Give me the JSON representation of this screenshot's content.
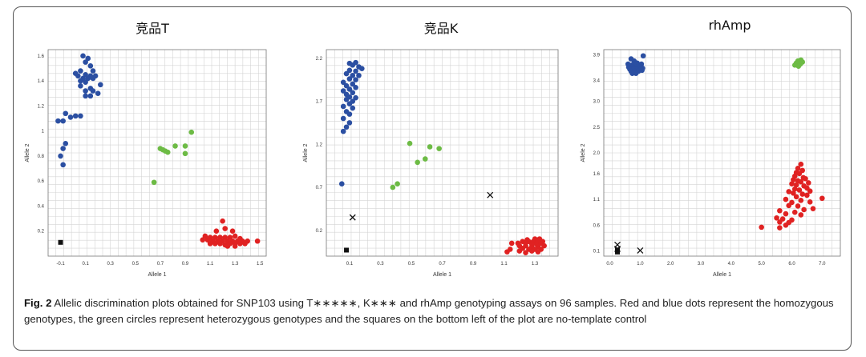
{
  "caption": {
    "label": "Fig. 2",
    "text": "Allelic discrimination plots obtained for SNP103 using T∗∗∗∗∗, K∗∗∗ and rhAmp genotyping assays on 96 samples. Red and blue dots represent the homozygous genotypes, the green circles represent heterozygous genotypes and the squares on the bottom left of the plot are no-template control"
  },
  "colors": {
    "blue": "#2b4fa2",
    "green": "#6dbb45",
    "red": "#e02222",
    "black": "#111111"
  },
  "chart_data": [
    {
      "type": "scatter",
      "title": "竞品T",
      "xlabel": "Allele 1",
      "ylabel": "Allele 2",
      "xlim": [
        -0.2,
        1.55
      ],
      "ylim": [
        0,
        1.65
      ],
      "xticks": [
        "-0.1",
        "0.1",
        "0.3",
        "0.5",
        "0.7",
        "0.9",
        "1.1",
        "1.3",
        "1.5"
      ],
      "yticks": [
        "0.2",
        "0.4",
        "0.6",
        "0.8",
        "1",
        "1.2",
        "1.4",
        "1.6"
      ],
      "series": [
        {
          "color": "blue",
          "marker": "circle",
          "points": [
            [
              0.08,
              1.6
            ],
            [
              0.12,
              1.58
            ],
            [
              0.1,
              1.55
            ],
            [
              0.14,
              1.52
            ],
            [
              0.06,
              1.48
            ],
            [
              0.16,
              1.48
            ],
            [
              0.02,
              1.46
            ],
            [
              0.1,
              1.45
            ],
            [
              0.04,
              1.44
            ],
            [
              0.14,
              1.44
            ],
            [
              0.18,
              1.44
            ],
            [
              0.08,
              1.42
            ],
            [
              0.12,
              1.42
            ],
            [
              0.16,
              1.42
            ],
            [
              0.06,
              1.4
            ],
            [
              0.1,
              1.39
            ],
            [
              0.22,
              1.37
            ],
            [
              0.06,
              1.36
            ],
            [
              0.14,
              1.34
            ],
            [
              0.1,
              1.32
            ],
            [
              0.16,
              1.32
            ],
            [
              0.2,
              1.3
            ],
            [
              0.1,
              1.28
            ],
            [
              0.14,
              1.28
            ],
            [
              -0.06,
              1.14
            ],
            [
              -0.02,
              1.11
            ],
            [
              0.02,
              1.12
            ],
            [
              0.06,
              1.12
            ],
            [
              -0.12,
              1.08
            ],
            [
              -0.08,
              1.08
            ],
            [
              -0.06,
              0.9
            ],
            [
              -0.08,
              0.86
            ],
            [
              -0.1,
              0.8
            ],
            [
              -0.08,
              0.73
            ]
          ]
        },
        {
          "color": "green",
          "marker": "circle",
          "points": [
            [
              0.95,
              0.99
            ],
            [
              0.7,
              0.86
            ],
            [
              0.72,
              0.85
            ],
            [
              0.74,
              0.84
            ],
            [
              0.76,
              0.83
            ],
            [
              0.82,
              0.88
            ],
            [
              0.9,
              0.88
            ],
            [
              0.9,
              0.82
            ],
            [
              0.65,
              0.59
            ]
          ]
        },
        {
          "color": "red",
          "marker": "circle",
          "points": [
            [
              1.2,
              0.28
            ],
            [
              1.15,
              0.2
            ],
            [
              1.22,
              0.22
            ],
            [
              1.28,
              0.2
            ],
            [
              1.06,
              0.16
            ],
            [
              1.1,
              0.15
            ],
            [
              1.14,
              0.15
            ],
            [
              1.18,
              0.15
            ],
            [
              1.22,
              0.15
            ],
            [
              1.26,
              0.15
            ],
            [
              1.3,
              0.16
            ],
            [
              1.34,
              0.14
            ],
            [
              1.04,
              0.13
            ],
            [
              1.08,
              0.13
            ],
            [
              1.12,
              0.12
            ],
            [
              1.16,
              0.12
            ],
            [
              1.2,
              0.12
            ],
            [
              1.24,
              0.12
            ],
            [
              1.28,
              0.12
            ],
            [
              1.32,
              0.12
            ],
            [
              1.36,
              0.12
            ],
            [
              1.4,
              0.12
            ],
            [
              1.48,
              0.12
            ],
            [
              1.1,
              0.1
            ],
            [
              1.14,
              0.1
            ],
            [
              1.18,
              0.1
            ],
            [
              1.22,
              0.09
            ],
            [
              1.26,
              0.1
            ],
            [
              1.3,
              0.1
            ],
            [
              1.34,
              0.1
            ],
            [
              1.38,
              0.1
            ],
            [
              1.24,
              0.08
            ],
            [
              1.3,
              0.08
            ]
          ]
        },
        {
          "color": "black",
          "marker": "square",
          "points": [
            [
              -0.1,
              0.11
            ]
          ]
        }
      ]
    },
    {
      "type": "scatter",
      "title": "竞品K",
      "xlabel": "Allele 1",
      "ylabel": "Allele 2",
      "xlim": [
        -0.05,
        1.45
      ],
      "ylim": [
        -0.1,
        2.3
      ],
      "xticks": [
        "0.1",
        "0.3",
        "0.5",
        "0.7",
        "0.9",
        "1.1",
        "1.3"
      ],
      "yticks": [
        "0.2",
        "0.7",
        "1.2",
        "1.7",
        "2.2"
      ],
      "series": [
        {
          "color": "blue",
          "marker": "circle",
          "points": [
            [
              0.14,
              2.15
            ],
            [
              0.1,
              2.14
            ],
            [
              0.12,
              2.12
            ],
            [
              0.16,
              2.1
            ],
            [
              0.18,
              2.08
            ],
            [
              0.1,
              2.06
            ],
            [
              0.14,
              2.05
            ],
            [
              0.08,
              2.02
            ],
            [
              0.12,
              2.0
            ],
            [
              0.16,
              2.0
            ],
            [
              0.1,
              1.96
            ],
            [
              0.14,
              1.95
            ],
            [
              0.06,
              1.92
            ],
            [
              0.12,
              1.9
            ],
            [
              0.08,
              1.88
            ],
            [
              0.14,
              1.86
            ],
            [
              0.1,
              1.84
            ],
            [
              0.06,
              1.82
            ],
            [
              0.12,
              1.8
            ],
            [
              0.08,
              1.78
            ],
            [
              0.1,
              1.75
            ],
            [
              0.14,
              1.74
            ],
            [
              0.08,
              1.72
            ],
            [
              0.12,
              1.7
            ],
            [
              0.1,
              1.67
            ],
            [
              0.06,
              1.64
            ],
            [
              0.12,
              1.62
            ],
            [
              0.08,
              1.58
            ],
            [
              0.1,
              1.55
            ],
            [
              0.06,
              1.5
            ],
            [
              0.1,
              1.45
            ],
            [
              0.08,
              1.4
            ],
            [
              0.06,
              1.35
            ],
            [
              0.05,
              0.74
            ]
          ]
        },
        {
          "color": "green",
          "marker": "circle",
          "points": [
            [
              0.49,
              1.21
            ],
            [
              0.62,
              1.17
            ],
            [
              0.68,
              1.15
            ],
            [
              0.59,
              1.03
            ],
            [
              0.54,
              0.99
            ],
            [
              0.41,
              0.74
            ],
            [
              0.38,
              0.7
            ]
          ]
        },
        {
          "color": "red",
          "marker": "circle",
          "points": [
            [
              1.25,
              0.09
            ],
            [
              1.3,
              0.1
            ],
            [
              1.33,
              0.1
            ],
            [
              1.22,
              0.07
            ],
            [
              1.26,
              0.07
            ],
            [
              1.29,
              0.07
            ],
            [
              1.32,
              0.07
            ],
            [
              1.35,
              0.07
            ],
            [
              1.15,
              0.05
            ],
            [
              1.19,
              0.05
            ],
            [
              1.24,
              0.05
            ],
            [
              1.28,
              0.04
            ],
            [
              1.31,
              0.04
            ],
            [
              1.34,
              0.05
            ],
            [
              1.2,
              0.02
            ],
            [
              1.24,
              0.02
            ],
            [
              1.28,
              0.01
            ],
            [
              1.32,
              0.01
            ],
            [
              1.36,
              0.02
            ],
            [
              1.14,
              -0.02
            ],
            [
              1.22,
              -0.01
            ],
            [
              1.26,
              -0.02
            ],
            [
              1.3,
              -0.02
            ],
            [
              1.34,
              -0.02
            ],
            [
              1.12,
              -0.05
            ],
            [
              1.2,
              -0.04
            ],
            [
              1.28,
              -0.04
            ],
            [
              1.32,
              -0.05
            ],
            [
              1.24,
              -0.06
            ]
          ]
        },
        {
          "color": "black",
          "marker": "square",
          "points": [
            [
              0.08,
              -0.03
            ]
          ]
        },
        {
          "color": "black",
          "marker": "x",
          "points": [
            [
              0.12,
              0.35
            ],
            [
              1.01,
              0.61
            ]
          ]
        }
      ]
    },
    {
      "type": "scatter",
      "title": "rhAmp",
      "xlabel": "Allele 1",
      "ylabel": "Allele 2",
      "xlim": [
        -0.2,
        7.6
      ],
      "ylim": [
        0,
        4.0
      ],
      "xticks": [
        "0.0",
        "1.0",
        "2.0",
        "3.0",
        "4.0",
        "5.0",
        "6.0",
        "7.0"
      ],
      "yticks": [
        "0.1",
        "0.6",
        "1.1",
        "1.6",
        "2.0",
        "2.5",
        "3.0",
        "3.4",
        "3.9"
      ],
      "series": [
        {
          "color": "blue",
          "marker": "circle",
          "points": [
            [
              1.1,
              3.88
            ],
            [
              0.7,
              3.82
            ],
            [
              0.8,
              3.78
            ],
            [
              0.9,
              3.74
            ],
            [
              0.6,
              3.72
            ],
            [
              0.72,
              3.7
            ],
            [
              0.84,
              3.7
            ],
            [
              0.96,
              3.7
            ],
            [
              1.04,
              3.72
            ],
            [
              0.62,
              3.66
            ],
            [
              0.74,
              3.66
            ],
            [
              0.86,
              3.66
            ],
            [
              0.98,
              3.66
            ],
            [
              1.08,
              3.64
            ],
            [
              0.66,
              3.62
            ],
            [
              0.78,
              3.62
            ],
            [
              0.9,
              3.62
            ],
            [
              1.02,
              3.62
            ],
            [
              0.7,
              3.58
            ],
            [
              0.82,
              3.58
            ],
            [
              0.94,
              3.58
            ],
            [
              1.06,
              3.6
            ],
            [
              0.74,
              3.54
            ],
            [
              0.86,
              3.54
            ]
          ]
        },
        {
          "color": "green",
          "marker": "circle",
          "points": [
            [
              6.3,
              3.8
            ],
            [
              6.2,
              3.78
            ],
            [
              6.35,
              3.76
            ],
            [
              6.15,
              3.74
            ],
            [
              6.28,
              3.72
            ],
            [
              6.1,
              3.7
            ],
            [
              6.22,
              3.68
            ]
          ]
        },
        {
          "color": "red",
          "marker": "circle",
          "points": [
            [
              6.3,
              1.78
            ],
            [
              6.2,
              1.7
            ],
            [
              6.35,
              1.66
            ],
            [
              6.15,
              1.62
            ],
            [
              6.25,
              1.6
            ],
            [
              6.1,
              1.55
            ],
            [
              6.38,
              1.52
            ],
            [
              6.45,
              1.5
            ],
            [
              6.05,
              1.48
            ],
            [
              6.2,
              1.46
            ],
            [
              6.3,
              1.44
            ],
            [
              6.55,
              1.42
            ],
            [
              6.0,
              1.4
            ],
            [
              6.15,
              1.38
            ],
            [
              6.4,
              1.36
            ],
            [
              6.5,
              1.32
            ],
            [
              6.1,
              1.3
            ],
            [
              6.25,
              1.28
            ],
            [
              6.6,
              1.26
            ],
            [
              5.9,
              1.25
            ],
            [
              6.05,
              1.22
            ],
            [
              6.35,
              1.2
            ],
            [
              6.5,
              1.18
            ],
            [
              7.0,
              1.12
            ],
            [
              6.15,
              1.15
            ],
            [
              5.8,
              1.1
            ],
            [
              6.3,
              1.08
            ],
            [
              6.6,
              1.05
            ],
            [
              6.0,
              1.04
            ],
            [
              5.9,
              0.98
            ],
            [
              6.2,
              0.97
            ],
            [
              6.7,
              0.92
            ],
            [
              6.4,
              0.9
            ],
            [
              5.6,
              0.88
            ],
            [
              6.1,
              0.85
            ],
            [
              5.8,
              0.82
            ],
            [
              6.3,
              0.8
            ],
            [
              5.5,
              0.74
            ],
            [
              5.7,
              0.72
            ],
            [
              6.0,
              0.7
            ],
            [
              5.6,
              0.66
            ],
            [
              5.9,
              0.65
            ],
            [
              5.8,
              0.6
            ],
            [
              5.6,
              0.55
            ],
            [
              5.0,
              0.56
            ]
          ]
        },
        {
          "color": "black",
          "marker": "square",
          "points": [
            [
              0.25,
              0.12
            ],
            [
              0.25,
              0.08
            ]
          ]
        },
        {
          "color": "black",
          "marker": "x",
          "points": [
            [
              0.25,
              0.22
            ],
            [
              1.0,
              0.11
            ],
            [
              0.25,
              0.14
            ]
          ]
        }
      ]
    }
  ]
}
